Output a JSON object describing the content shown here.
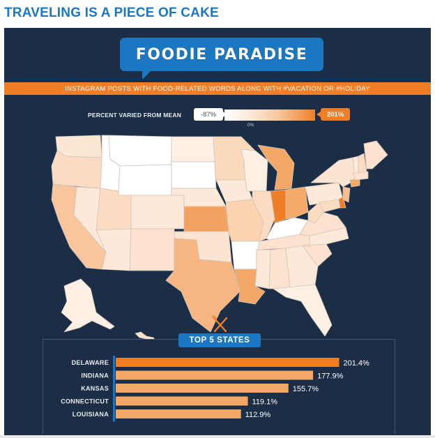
{
  "page_title": "TRAVELING IS A PIECE OF CAKE",
  "banner_title": "FOODIE PARADISE",
  "subtitle": "INSTAGRAM POSTS WITH FOOD-RELATED WORDS ALONG WITH #VACATION OR #HOLIDAY",
  "legend": {
    "label": "PERCENT VARIED FROM MEAN",
    "min": "-87%",
    "mid": "0%",
    "max": "201%",
    "low_color": "#ffffff",
    "high_color": "#f07e26"
  },
  "colors": {
    "panel": "#1b2e45",
    "accent_blue": "#1c77c3",
    "accent_orange": "#f07e26",
    "bar_top": "#f07e26",
    "bar_rest": "#f3a867"
  },
  "top5_label": "TOP 5 STATES",
  "icons": {
    "fork_knife": "fork-knife-icon"
  },
  "chart_data": {
    "type": "bar",
    "orientation": "horizontal",
    "categories": [
      "DELAWARE",
      "INDIANA",
      "KANSAS",
      "CONNECTICUT",
      "LOUISIANA"
    ],
    "values": [
      201.4,
      177.9,
      155.7,
      119.1,
      112.9
    ],
    "value_labels": [
      "201.4%",
      "177.9%",
      "155.7%",
      "119.1%",
      "112.9%"
    ],
    "xlim": [
      0,
      230
    ]
  }
}
